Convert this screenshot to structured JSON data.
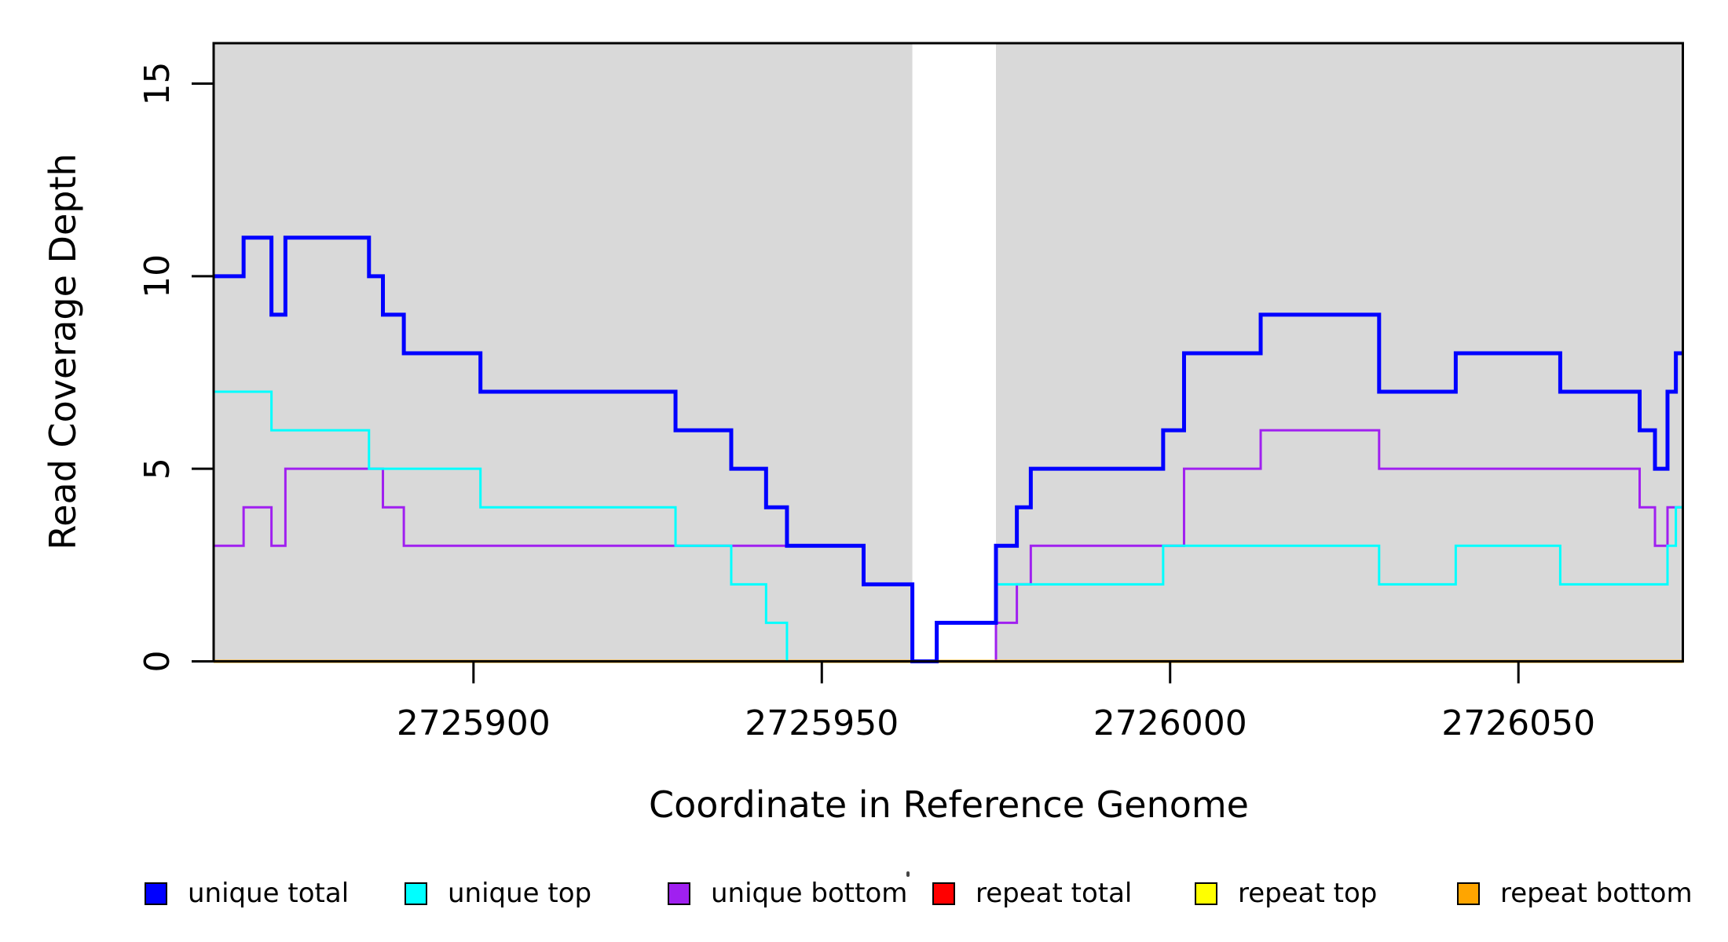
{
  "figure": {
    "plot_bg_color": "#D9D9D9",
    "gap_region": {
      "start": 2725963,
      "end": 2725975
    },
    "y_axis": {
      "title": "Read Coverage Depth",
      "ticks": [
        0,
        5,
        10,
        15
      ]
    },
    "x_axis": {
      "title": "Coordinate in Reference Genome",
      "ticks": [
        2725900,
        2725950,
        2726000,
        2726050
      ]
    },
    "legend": [
      {
        "label": "unique total",
        "color": "#0000FF"
      },
      {
        "label": "unique top",
        "color": "#00FFFF"
      },
      {
        "label": "unique bottom",
        "color": "#A020F0"
      },
      {
        "label": "repeat total",
        "color": "#FF0000"
      },
      {
        "label": "repeat top",
        "color": "#FFFF00"
      },
      {
        "label": "repeat bottom",
        "color": "#FFA500"
      }
    ]
  },
  "chart_data": {
    "type": "line",
    "step": true,
    "title": "",
    "xlabel": "Coordinate in Reference Genome",
    "ylabel": "Read Coverage Depth",
    "xlim": [
      2725862.7,
      2726073.6
    ],
    "ylim": [
      0,
      16.05
    ],
    "grid": false,
    "legend_position": "bottom",
    "shaded_regions": [
      [
        2725862.7,
        2725963
      ],
      [
        2725975,
        2726073.6
      ]
    ],
    "x_boundaries": [
      2725862.7,
      2725867,
      2725871,
      2725873,
      2725885,
      2725887,
      2725890,
      2725901,
      2725929,
      2725937,
      2725942,
      2725945,
      2725956,
      2725963,
      2725966.5,
      2725975,
      2725978,
      2725980,
      2725999,
      2726002,
      2726013,
      2726030,
      2726041,
      2726056,
      2726067.4,
      2726069.6,
      2726071.4,
      2726072.6,
      2726073.6
    ],
    "series": [
      {
        "name": "unique total",
        "color": "#0000FF",
        "line_width": 5,
        "values": [
          10,
          11,
          9,
          11,
          10,
          9,
          8,
          7,
          6,
          5,
          4,
          3,
          2,
          0,
          1,
          3,
          4,
          5,
          6,
          8,
          9,
          7,
          8,
          7,
          6,
          5,
          7,
          8
        ]
      },
      {
        "name": "unique top",
        "color": "#00FFFF",
        "line_width": 3,
        "values": [
          7,
          7,
          6,
          6,
          5,
          5,
          5,
          4,
          3,
          2,
          1,
          0,
          0,
          0,
          1,
          2,
          2,
          2,
          3,
          3,
          3,
          2,
          3,
          2,
          2,
          2,
          3,
          4
        ]
      },
      {
        "name": "unique bottom",
        "color": "#A020F0",
        "line_width": 3,
        "values": [
          3,
          4,
          3,
          5,
          5,
          4,
          3,
          3,
          3,
          3,
          3,
          3,
          2,
          0,
          0,
          1,
          2,
          3,
          3,
          5,
          6,
          5,
          5,
          5,
          4,
          3,
          4,
          4
        ]
      },
      {
        "name": "repeat total",
        "color": "#FF0000",
        "line_width": 3,
        "values": [
          0,
          0,
          0,
          0,
          0,
          0,
          0,
          0,
          0,
          0,
          0,
          0,
          0,
          0,
          0,
          0,
          0,
          0,
          0,
          0,
          0,
          0,
          0,
          0,
          0,
          0,
          0,
          0
        ]
      },
      {
        "name": "repeat top",
        "color": "#FFFF00",
        "line_width": 3,
        "values": [
          0,
          0,
          0,
          0,
          0,
          0,
          0,
          0,
          0,
          0,
          0,
          0,
          0,
          0,
          0,
          0,
          0,
          0,
          0,
          0,
          0,
          0,
          0,
          0,
          0,
          0,
          0,
          0
        ]
      },
      {
        "name": "repeat bottom",
        "color": "#FFA500",
        "line_width": 4,
        "values": [
          0,
          0,
          0,
          0,
          0,
          0,
          0,
          0,
          0,
          0,
          0,
          0,
          0,
          0,
          0,
          0,
          0,
          0,
          0,
          0,
          0,
          0,
          0,
          0,
          0,
          0,
          0,
          0
        ]
      }
    ],
    "draw_order": [
      "repeat total",
      "repeat top",
      "unique bottom",
      "repeat bottom",
      "unique top",
      "unique total"
    ]
  }
}
